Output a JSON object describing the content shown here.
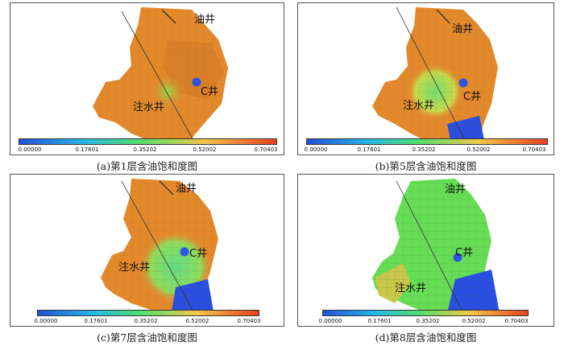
{
  "panels": [
    {
      "caption": "(a)第1层含油饱和度图",
      "oil_well": "油井",
      "injection_well": "注水井",
      "c_well": "C井"
    },
    {
      "caption": "(b)第5层含油饱和度图",
      "oil_well": "油井",
      "injection_well": "注水井",
      "c_well": "C井"
    },
    {
      "caption": "(c)第7层含油饱和度图",
      "oil_well": "油井",
      "injection_well": "注水井",
      "c_well": "C井"
    },
    {
      "caption": "(d)第8层含油饱和度图",
      "oil_well": "油井",
      "injection_well": "注水井",
      "c_well": "C井"
    }
  ],
  "colorbar": {
    "ticks": [
      "0.00000",
      "0.17601",
      "0.35202",
      "0.52002",
      "0.70403"
    ],
    "gradient_colors": [
      "#2350d8",
      "#25b7e8",
      "#52e06a",
      "#f6c64a",
      "#e7401f"
    ]
  },
  "colors": {
    "well_marker": "#2e55e0",
    "high_saturation": "#d9822c",
    "low_saturation": "#2a4fe0"
  }
}
